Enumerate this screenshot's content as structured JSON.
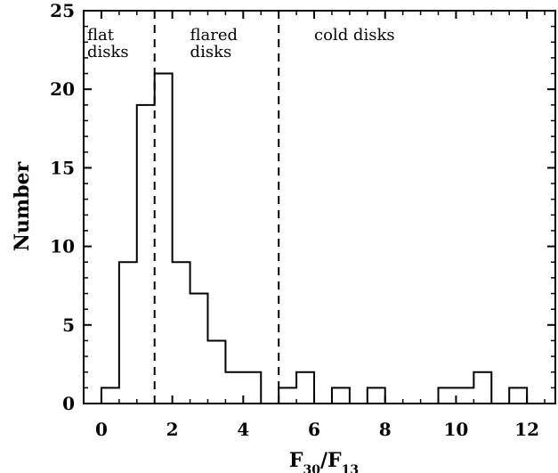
{
  "chart_data": {
    "type": "histogram",
    "title": "",
    "xlabel": {
      "base": "F",
      "sub_num": "30",
      "sep": "/F",
      "sub_den": "13"
    },
    "ylabel": "Number",
    "xlim": [
      -0.5,
      12.8
    ],
    "ylim": [
      0,
      25
    ],
    "x_ticks": [
      0,
      2,
      4,
      6,
      8,
      10,
      12
    ],
    "y_ticks": [
      0,
      5,
      10,
      15,
      20,
      25
    ],
    "bin_width": 0.5,
    "bins": [
      {
        "x0": 0.0,
        "count": 1
      },
      {
        "x0": 0.5,
        "count": 9
      },
      {
        "x0": 1.0,
        "count": 19
      },
      {
        "x0": 1.5,
        "count": 21
      },
      {
        "x0": 2.0,
        "count": 9
      },
      {
        "x0": 2.5,
        "count": 7
      },
      {
        "x0": 3.0,
        "count": 4
      },
      {
        "x0": 3.5,
        "count": 2
      },
      {
        "x0": 4.0,
        "count": 2
      },
      {
        "x0": 4.5,
        "count": 0
      },
      {
        "x0": 5.0,
        "count": 1
      },
      {
        "x0": 5.5,
        "count": 2
      },
      {
        "x0": 6.0,
        "count": 0
      },
      {
        "x0": 6.5,
        "count": 1
      },
      {
        "x0": 7.0,
        "count": 0
      },
      {
        "x0": 7.5,
        "count": 1
      },
      {
        "x0": 8.0,
        "count": 0
      },
      {
        "x0": 8.5,
        "count": 0
      },
      {
        "x0": 9.0,
        "count": 0
      },
      {
        "x0": 9.5,
        "count": 1
      },
      {
        "x0": 10.0,
        "count": 1
      },
      {
        "x0": 10.5,
        "count": 2
      },
      {
        "x0": 11.0,
        "count": 0
      },
      {
        "x0": 11.5,
        "count": 1
      },
      {
        "x0": 12.0,
        "count": 0
      }
    ],
    "dividers": [
      1.5,
      5.0
    ],
    "regions": [
      {
        "lines": [
          "flat",
          "disks"
        ],
        "x": -0.4
      },
      {
        "lines": [
          "flared",
          "disks"
        ],
        "x": 2.5
      },
      {
        "lines": [
          "cold disks"
        ],
        "x": 6.0
      }
    ],
    "grid": false
  }
}
